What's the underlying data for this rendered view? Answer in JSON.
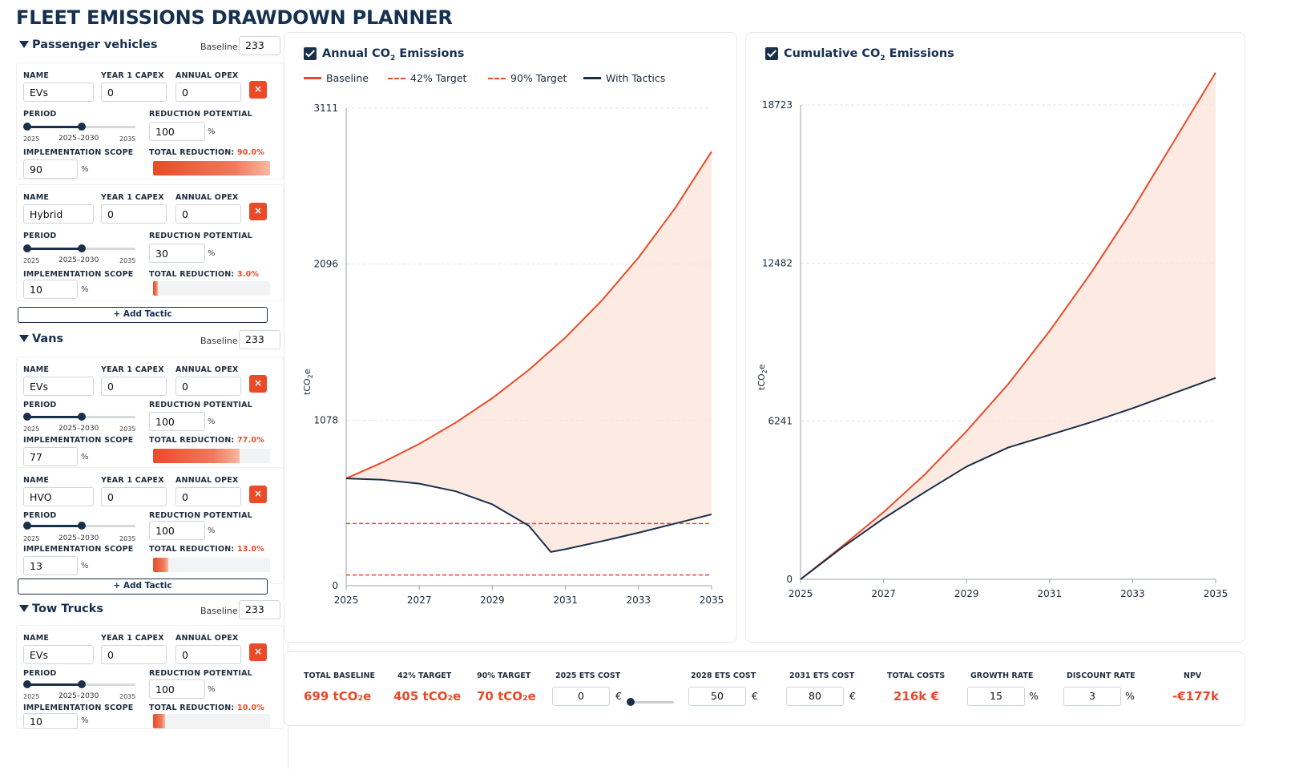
{
  "app": {
    "title": "FLEET EMISSIONS DRAWDOWN PLANNER"
  },
  "labels": {
    "name": "NAME",
    "capex": "YEAR 1 CAPEX",
    "opex": "ANNUAL OPEX",
    "period": "PERIOD",
    "reduction_potential": "REDUCTION POTENTIAL",
    "implementation_scope": "IMPLEMENTATION SCOPE",
    "total_reduction": "TOTAL REDUCTION:",
    "baseline": "Baseline:",
    "percent": "%",
    "delete": "×",
    "add_tactic": "+ Add Tactic"
  },
  "groups": [
    {
      "name": "Passenger vehicles",
      "baseline": "233",
      "tactics": [
        {
          "name": "EVs",
          "capex": "0",
          "opex": "0",
          "period_start": "2025",
          "period_range": "2025–2030",
          "period_end": "2035",
          "period_fraction": 0.5,
          "reduction_potential": "100",
          "scope": "90",
          "total_reduction": "90.0%",
          "total_reduction_value": 0.9
        },
        {
          "name": "Hybrid",
          "capex": "0",
          "opex": "0",
          "period_start": "2025",
          "period_range": "2025–2030",
          "period_end": "2035",
          "period_fraction": 0.5,
          "reduction_potential": "30",
          "scope": "10",
          "total_reduction": "3.0%",
          "total_reduction_value": 0.03
        }
      ]
    },
    {
      "name": "Vans",
      "baseline": "233",
      "tactics": [
        {
          "name": "EVs",
          "capex": "0",
          "opex": "0",
          "period_start": "2025",
          "period_range": "2025–2030",
          "period_end": "2035",
          "period_fraction": 0.5,
          "reduction_potential": "100",
          "scope": "77",
          "total_reduction": "77.0%",
          "total_reduction_value": 0.77
        },
        {
          "name": "HVO",
          "capex": "0",
          "opex": "0",
          "period_start": "2025",
          "period_range": "2025–2030",
          "period_end": "2035",
          "period_fraction": 0.5,
          "reduction_potential": "100",
          "scope": "13",
          "total_reduction": "13.0%",
          "total_reduction_value": 0.13
        }
      ]
    },
    {
      "name": "Tow Trucks",
      "baseline": "233",
      "tactics": [
        {
          "name": "EVs",
          "capex": "0",
          "opex": "0",
          "period_start": "2025",
          "period_range": "2025–2030",
          "period_end": "2035",
          "period_fraction": 0.5,
          "reduction_potential": "100",
          "scope": "10",
          "total_reduction": "10.0%",
          "total_reduction_value": 0.1
        }
      ]
    }
  ],
  "charts": {
    "annual": {
      "title_prefix": "Annual CO",
      "title_sub": "2",
      "title_suffix": " Emissions",
      "legend": [
        "Baseline",
        "42% Target",
        "90% Target",
        "With Tactics"
      ]
    },
    "cumulative": {
      "title_prefix": "Cumulative CO",
      "title_sub": "2",
      "title_suffix": " Emissions"
    },
    "ylabel_prefix": "tCO",
    "ylabel_sub": "2",
    "ylabel_suffix": "e"
  },
  "colors": {
    "baseline": "#e84a28",
    "tactics": "#1a2f4a",
    "area": "#fbe3da",
    "grid": "#e3e6ea"
  },
  "chart_data": [
    {
      "type": "line",
      "title": "Annual CO2 Emissions",
      "ylabel": "tCO2e",
      "x_ticks": [
        "2025",
        "2027",
        "2029",
        "2031",
        "2033",
        "2035"
      ],
      "y_ticks": [
        "0",
        "1078",
        "2096",
        "3111"
      ],
      "xlim": [
        2025,
        2035
      ],
      "ylim": [
        0,
        3111
      ],
      "legend_position": "top",
      "series": [
        {
          "name": "Baseline",
          "x": [
            2025,
            2026,
            2027,
            2028,
            2029,
            2030,
            2031,
            2032,
            2033,
            2034,
            2035
          ],
          "y": [
            699,
            804,
            924,
            1063,
            1222,
            1406,
            1617,
            1859,
            2138,
            2459,
            2828
          ]
        },
        {
          "name": "42% Target",
          "x": [
            2025,
            2035
          ],
          "y": [
            405,
            405
          ]
        },
        {
          "name": "90% Target",
          "x": [
            2025,
            2035
          ],
          "y": [
            70,
            70
          ]
        },
        {
          "name": "With Tactics",
          "x": [
            2025,
            2026,
            2027,
            2028,
            2029,
            2030,
            2030.6,
            2031,
            2032,
            2033,
            2034,
            2035
          ],
          "y": [
            699,
            690,
            665,
            615,
            530,
            390,
            220,
            238,
            290,
            345,
            405,
            465
          ]
        }
      ]
    },
    {
      "type": "line",
      "title": "Cumulative CO2 Emissions",
      "ylabel": "tCO2e",
      "x_ticks": [
        "2025",
        "2027",
        "2029",
        "2031",
        "2033",
        "2035"
      ],
      "y_ticks": [
        "0",
        "6241",
        "12482",
        "18723"
      ],
      "xlim": [
        2025,
        2035
      ],
      "ylim": [
        0,
        18723
      ],
      "series": [
        {
          "name": "Baseline",
          "x": [
            2025,
            2026,
            2027,
            2028,
            2029,
            2030,
            2031,
            2032,
            2033,
            2034,
            2035
          ],
          "y": [
            0,
            1300,
            2650,
            4150,
            5850,
            7700,
            9800,
            12100,
            14600,
            17300,
            20000
          ]
        },
        {
          "name": "With Tactics",
          "x": [
            2025,
            2026,
            2027,
            2028,
            2029,
            2030,
            2031,
            2032,
            2033,
            2034,
            2035
          ],
          "y": [
            0,
            1250,
            2400,
            3450,
            4450,
            5200,
            5700,
            6200,
            6750,
            7350,
            7950
          ]
        }
      ]
    }
  ],
  "stats": {
    "total_baseline": {
      "label": "TOTAL BASELINE",
      "value": "699 tCO₂e"
    },
    "target42": {
      "label": "42% TARGET",
      "value": "405 tCO₂e"
    },
    "target90": {
      "label": "90% TARGET",
      "value": "70 tCO₂e"
    },
    "ets2025": {
      "label": "2025 ETS COST",
      "value": "0",
      "unit": "€",
      "slider_value": 0
    },
    "ets2028": {
      "label": "2028 ETS COST",
      "value": "50",
      "unit": "€"
    },
    "ets2031": {
      "label": "2031 ETS COST",
      "value": "80",
      "unit": "€"
    },
    "total_costs": {
      "label": "TOTAL COSTS",
      "value": "216k €"
    },
    "growth_rate": {
      "label": "GROWTH RATE",
      "value": "15",
      "unit": "%"
    },
    "discount_rate": {
      "label": "DISCOUNT RATE",
      "value": "3",
      "unit": "%"
    },
    "npv": {
      "label": "NPV",
      "value": "-€177k"
    }
  }
}
